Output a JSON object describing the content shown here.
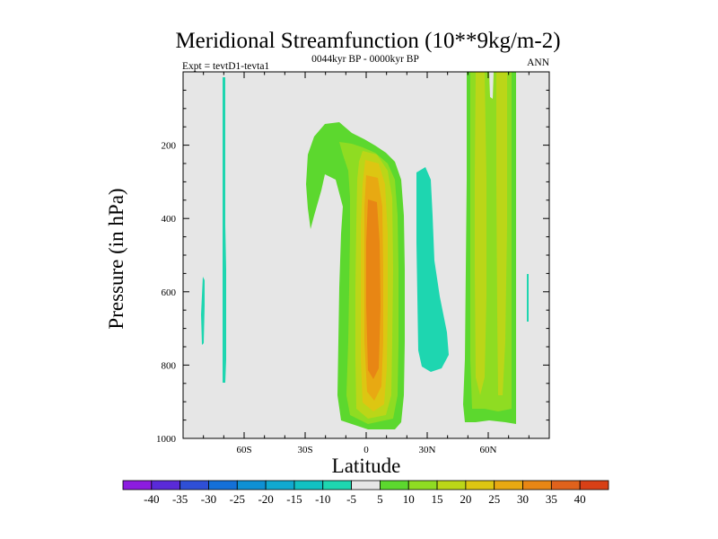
{
  "title": "Meridional Streamfunction (10**9kg/m-2)",
  "subtitle_left": "Expt = tevtD1-tevta1",
  "subtitle_center": "0044kyr BP - 0000kyr BP",
  "subtitle_right": "ANN",
  "chart_data": {
    "type": "contour",
    "title": "Meridional Streamfunction (10**9kg/m-2)",
    "xlabel": "Latitude",
    "ylabel": "Pressure (in hPa)",
    "xlim": [
      -90,
      90
    ],
    "ylim": [
      1000,
      0
    ],
    "xticks": [
      {
        "value": -60,
        "label": "60S"
      },
      {
        "value": -30,
        "label": "30S"
      },
      {
        "value": 0,
        "label": "0"
      },
      {
        "value": 30,
        "label": "30N"
      },
      {
        "value": 60,
        "label": "60N"
      }
    ],
    "yticks": [
      {
        "value": 200,
        "label": "200"
      },
      {
        "value": 400,
        "label": "400"
      },
      {
        "value": 600,
        "label": "600"
      },
      {
        "value": 800,
        "label": "800"
      },
      {
        "value": 1000,
        "label": "1000"
      }
    ],
    "background_color": "#e6e6e6",
    "colorbar": {
      "labels": [
        "-40",
        "-35",
        "-30",
        "-25",
        "-20",
        "-15",
        "-10",
        "-5",
        "5",
        "10",
        "15",
        "20",
        "25",
        "30",
        "35",
        "40"
      ],
      "colors": [
        "#8c1ce0",
        "#5a2ad8",
        "#2f4fd6",
        "#1470d8",
        "#0e90d4",
        "#10a9d0",
        "#12c1c2",
        "#1ed6b0",
        "#e6e6e6",
        "#5cd82e",
        "#8fdc22",
        "#bbd618",
        "#ddc612",
        "#e8a912",
        "#e88614",
        "#e0621c",
        "#d84016"
      ]
    },
    "features": [
      {
        "name": "Hadley cell (positive)",
        "lat_range": [
          -8,
          12
        ],
        "p_range": [
          150,
          970
        ],
        "max_level": "30-35"
      },
      {
        "name": "Ferrel cell (negative)",
        "lat_range": [
          25,
          42
        ],
        "p_range": [
          260,
          810
        ],
        "level": "-5"
      },
      {
        "name": "Northern polar columns (positive)",
        "lat_range": [
          50,
          72
        ],
        "p_range": [
          0,
          960
        ],
        "level": "10-20"
      },
      {
        "name": "Southern narrow negative column",
        "lat": -68,
        "p_range": [
          0,
          850
        ],
        "level": "-5"
      },
      {
        "name": "Southern small negative blob",
        "lat": -80,
        "p_range": [
          550,
          750
        ],
        "level": "-5"
      },
      {
        "name": "Northern small negative blob",
        "lat": 80,
        "p_range": [
          550,
          680
        ],
        "level": "-5"
      }
    ]
  }
}
